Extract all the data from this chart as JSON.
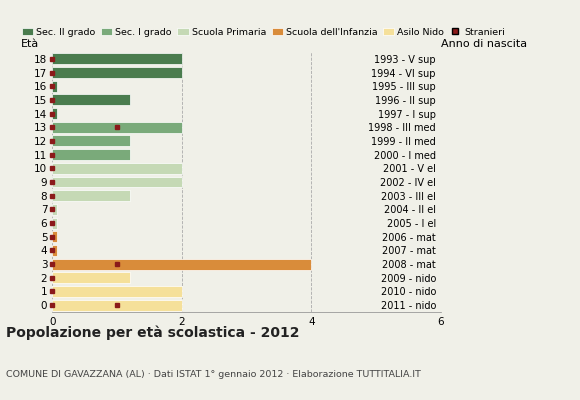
{
  "ages": [
    18,
    17,
    16,
    15,
    14,
    13,
    12,
    11,
    10,
    9,
    8,
    7,
    6,
    5,
    4,
    3,
    2,
    1,
    0
  ],
  "years": [
    "1993 - V sup",
    "1994 - VI sup",
    "1995 - III sup",
    "1996 - II sup",
    "1997 - I sup",
    "1998 - III med",
    "1999 - II med",
    "2000 - I med",
    "2001 - V el",
    "2002 - IV el",
    "2003 - III el",
    "2004 - II el",
    "2005 - I el",
    "2006 - mat",
    "2007 - mat",
    "2008 - mat",
    "2009 - nido",
    "2010 - nido",
    "2011 - nido"
  ],
  "values": [
    2,
    2,
    0.07,
    1.2,
    0.07,
    2,
    1.2,
    1.2,
    2,
    2,
    1.2,
    0.07,
    0.07,
    0.07,
    0.07,
    4,
    1.2,
    2,
    2
  ],
  "stranieri": [
    0,
    0,
    1,
    0,
    1,
    1,
    1,
    0,
    1,
    0,
    1,
    1,
    1,
    1,
    1,
    1,
    1,
    1,
    1
  ],
  "stranieri_pos": [
    0,
    0,
    0,
    0,
    0,
    1.0,
    0,
    0,
    0,
    0,
    0,
    0,
    0,
    0,
    0,
    1.0,
    0,
    0,
    1.0
  ],
  "categories": {
    "sec2": [
      18,
      17,
      16,
      15,
      14
    ],
    "sec1": [
      13,
      12,
      11
    ],
    "primaria": [
      10,
      9,
      8,
      7,
      6
    ],
    "infanzia": [
      5,
      4,
      3
    ],
    "nido": [
      2,
      1,
      0
    ]
  },
  "colors": {
    "sec2": "#4a7c4e",
    "sec1": "#7aaa7a",
    "primaria": "#c5d9b5",
    "infanzia": "#d98c3a",
    "nido": "#f5e09a"
  },
  "bar_height": 0.8,
  "xlim": [
    0,
    6.0
  ],
  "xticks": [
    0,
    2,
    4,
    6
  ],
  "title": "Popolazione per età scolastica - 2012",
  "subtitle": "COMUNE DI GAVAZZANA (AL) · Dati ISTAT 1° gennaio 2012 · Elaborazione TUTTITALIA.IT",
  "legend_labels": [
    "Sec. II grado",
    "Sec. I grado",
    "Scuola Primaria",
    "Scuola dell'Infanzia",
    "Asilo Nido",
    "Stranieri"
  ],
  "ylabel_left": "Età",
  "ylabel_right": "Anno di nascita",
  "stranieri_color": "#8b1a1a",
  "bg_color": "#f0f0e8",
  "grid_color": "#aaaaaa"
}
